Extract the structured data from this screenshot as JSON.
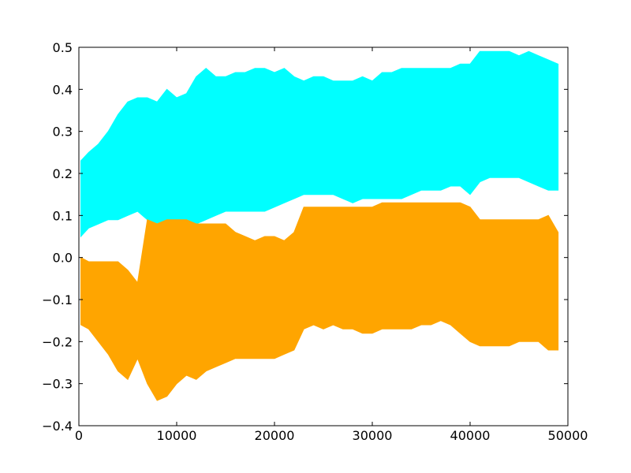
{
  "chart_data": {
    "type": "area",
    "title": "",
    "xlabel": "",
    "ylabel": "",
    "xlim": [
      0,
      50000
    ],
    "ylim": [
      -0.4,
      0.5
    ],
    "grid": false,
    "x_ticks": [
      0,
      10000,
      20000,
      30000,
      40000,
      50000
    ],
    "y_ticks": [
      -0.4,
      -0.3,
      -0.2,
      -0.1,
      0.0,
      0.1,
      0.2,
      0.3,
      0.4,
      0.5
    ],
    "x_tick_labels": [
      "0",
      "10000",
      "20000",
      "30000",
      "40000",
      "50000"
    ],
    "y_tick_labels": [
      "−0.4",
      "−0.3",
      "−0.2",
      "−0.1",
      "0.0",
      "0.1",
      "0.2",
      "0.3",
      "0.4",
      "0.5"
    ],
    "series": [
      {
        "color": "#00ffff",
        "x": [
          200,
          1000,
          2000,
          3000,
          4000,
          5000,
          6000,
          7000,
          8000,
          9000,
          10000,
          11000,
          12000,
          13000,
          14000,
          15000,
          16000,
          17000,
          18000,
          19000,
          20000,
          21000,
          22000,
          23000,
          24000,
          25000,
          26000,
          27000,
          28000,
          29000,
          30000,
          31000,
          32000,
          33000,
          34000,
          35000,
          36000,
          37000,
          38000,
          39000,
          40000,
          41000,
          42000,
          43000,
          44000,
          45000,
          46000,
          47000,
          48000,
          49000
        ],
        "upper": [
          0.23,
          0.25,
          0.27,
          0.3,
          0.34,
          0.37,
          0.38,
          0.38,
          0.37,
          0.4,
          0.38,
          0.39,
          0.43,
          0.45,
          0.43,
          0.43,
          0.44,
          0.44,
          0.45,
          0.45,
          0.44,
          0.45,
          0.43,
          0.42,
          0.43,
          0.43,
          0.42,
          0.42,
          0.42,
          0.43,
          0.42,
          0.44,
          0.44,
          0.45,
          0.45,
          0.45,
          0.45,
          0.45,
          0.45,
          0.46,
          0.46,
          0.49,
          0.49,
          0.49,
          0.49,
          0.48,
          0.49,
          0.48,
          0.47,
          0.46
        ],
        "lower": [
          0.05,
          0.07,
          0.08,
          0.09,
          0.09,
          0.1,
          0.11,
          0.09,
          0.08,
          0.09,
          0.09,
          0.09,
          0.08,
          0.09,
          0.1,
          0.11,
          0.11,
          0.11,
          0.11,
          0.11,
          0.12,
          0.13,
          0.14,
          0.15,
          0.15,
          0.15,
          0.15,
          0.14,
          0.13,
          0.14,
          0.14,
          0.14,
          0.14,
          0.14,
          0.15,
          0.16,
          0.16,
          0.16,
          0.17,
          0.17,
          0.15,
          0.18,
          0.19,
          0.19,
          0.19,
          0.19,
          0.18,
          0.17,
          0.16,
          0.16
        ]
      },
      {
        "color": "#ffa500",
        "x": [
          200,
          1000,
          2000,
          3000,
          4000,
          5000,
          6000,
          7000,
          8000,
          9000,
          10000,
          11000,
          12000,
          13000,
          14000,
          15000,
          16000,
          17000,
          18000,
          19000,
          20000,
          21000,
          22000,
          23000,
          24000,
          25000,
          26000,
          27000,
          28000,
          29000,
          30000,
          31000,
          32000,
          33000,
          34000,
          35000,
          36000,
          37000,
          38000,
          39000,
          40000,
          41000,
          42000,
          43000,
          44000,
          45000,
          46000,
          47000,
          48000,
          49000
        ],
        "upper": [
          0.0,
          -0.01,
          -0.01,
          -0.01,
          -0.01,
          -0.03,
          -0.06,
          0.09,
          0.08,
          0.09,
          0.09,
          0.09,
          0.08,
          0.08,
          0.08,
          0.08,
          0.06,
          0.05,
          0.04,
          0.05,
          0.05,
          0.04,
          0.06,
          0.12,
          0.12,
          0.12,
          0.12,
          0.12,
          0.12,
          0.12,
          0.12,
          0.13,
          0.13,
          0.13,
          0.13,
          0.13,
          0.13,
          0.13,
          0.13,
          0.13,
          0.12,
          0.09,
          0.09,
          0.09,
          0.09,
          0.09,
          0.09,
          0.09,
          0.1,
          0.06
        ],
        "lower": [
          -0.16,
          -0.17,
          -0.2,
          -0.23,
          -0.27,
          -0.29,
          -0.24,
          -0.3,
          -0.34,
          -0.33,
          -0.3,
          -0.28,
          -0.29,
          -0.27,
          -0.26,
          -0.25,
          -0.24,
          -0.24,
          -0.24,
          -0.24,
          -0.24,
          -0.23,
          -0.22,
          -0.17,
          -0.16,
          -0.17,
          -0.16,
          -0.17,
          -0.17,
          -0.18,
          -0.18,
          -0.17,
          -0.17,
          -0.17,
          -0.17,
          -0.16,
          -0.16,
          -0.15,
          -0.16,
          -0.18,
          -0.2,
          -0.21,
          -0.21,
          -0.21,
          -0.21,
          -0.2,
          -0.2,
          -0.2,
          -0.22,
          -0.22
        ]
      }
    ]
  }
}
